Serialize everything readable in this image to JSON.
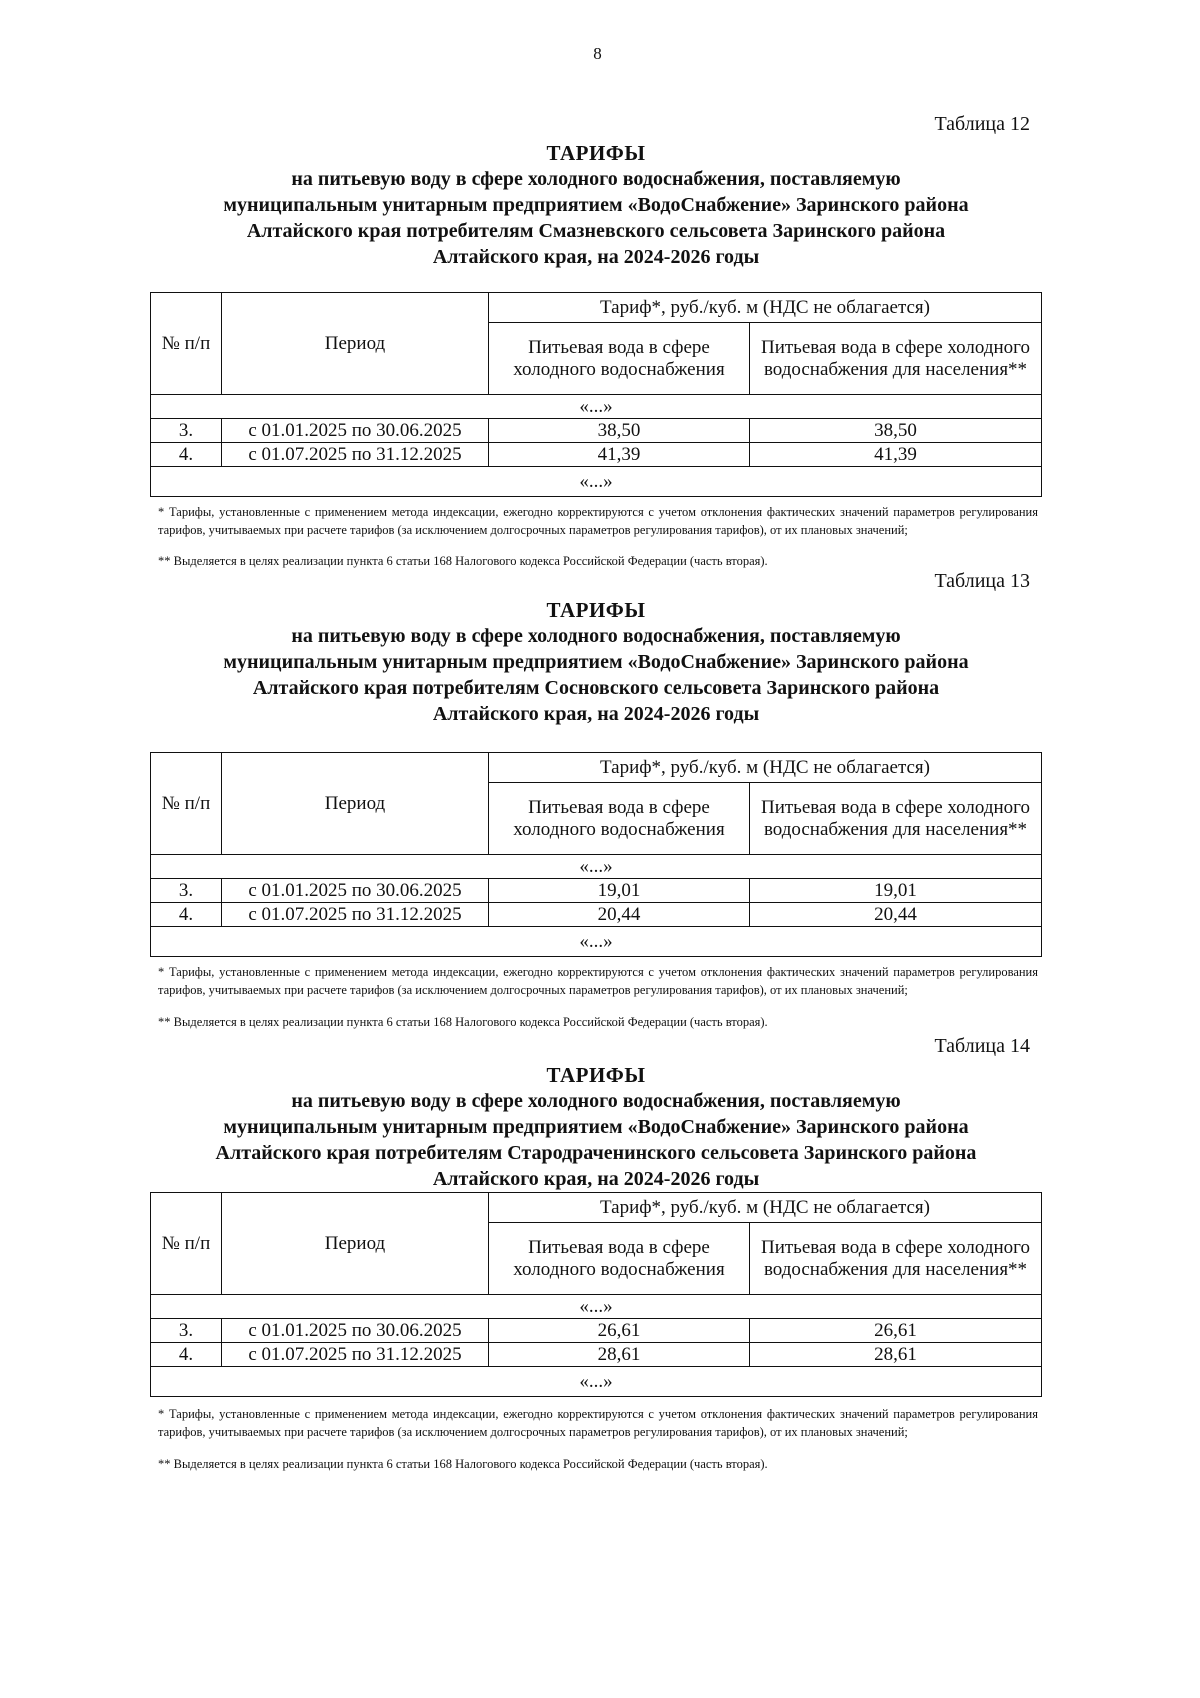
{
  "page_number": "8",
  "tables": [
    {
      "label": "Таблица 12",
      "heading": "ТАРИФЫ",
      "title_lines": [
        "на питьевую воду в сфере холодного водоснабжения, поставляемую",
        "муниципальным унитарным предприятием «ВодоСнабжение» Заринского района",
        "Алтайского края потребителям Смазневского сельсовета Заринского района",
        "Алтайского края, на 2024-2026 годы"
      ],
      "header": {
        "num": "№ п/п",
        "period": "Период",
        "tariff": "Тариф*, руб./куб. м (НДС не облагается)",
        "col1": "Питьевая вода в сфере холодного водоснабжения",
        "col2": "Питьевая вода в сфере холодного водоснабжения для населения**"
      },
      "ellipsis": "«...»",
      "rows": [
        {
          "num": "3.",
          "period": "с 01.01.2025 по 30.06.2025",
          "v1": "38,50",
          "v2": "38,50"
        },
        {
          "num": "4.",
          "period": "с 01.07.2025 по 31.12.2025",
          "v1": "41,39",
          "v2": "41,39"
        }
      ],
      "note1": "* Тарифы, установленные с применением метода индексации, ежегодно корректируются с учетом отклонения фактических значений параметров регулирования тарифов, учитываемых при расчете тарифов (за исключением долгосрочных параметров регулирования тарифов), от их плановых значений;",
      "note2": "** Выделяется в целях реализации пункта 6 статьи 168 Налогового кодекса Российской Федерации (часть вторая)."
    },
    {
      "label": "Таблица 13",
      "heading": "ТАРИФЫ",
      "title_lines": [
        "на питьевую воду в сфере холодного водоснабжения, поставляемую",
        "муниципальным унитарным предприятием «ВодоСнабжение» Заринского района",
        "Алтайского края потребителям Сосновского сельсовета Заринского района",
        "Алтайского края, на 2024-2026 годы"
      ],
      "header": {
        "num": "№ п/п",
        "period": "Период",
        "tariff": "Тариф*, руб./куб. м (НДС не облагается)",
        "col1": "Питьевая вода в сфере холодного водоснабжения",
        "col2": "Питьевая вода в сфере холодного водоснабжения для населения**"
      },
      "ellipsis": "«...»",
      "rows": [
        {
          "num": "3.",
          "period": "с 01.01.2025 по 30.06.2025",
          "v1": "19,01",
          "v2": "19,01"
        },
        {
          "num": "4.",
          "period": "с 01.07.2025 по 31.12.2025",
          "v1": "20,44",
          "v2": "20,44"
        }
      ],
      "note1": "* Тарифы, установленные с применением метода индексации, ежегодно корректируются с учетом отклонения фактических значений параметров регулирования тарифов, учитываемых при расчете тарифов (за исключением долгосрочных параметров регулирования тарифов), от их плановых значений;",
      "note2": "** Выделяется в целях реализации пункта 6 статьи 168 Налогового кодекса Российской Федерации (часть вторая)."
    },
    {
      "label": "Таблица 14",
      "heading": "ТАРИФЫ",
      "title_lines": [
        "на питьевую воду в сфере холодного водоснабжения, поставляемую",
        "муниципальным унитарным предприятием «ВодоСнабжение» Заринского района",
        "Алтайского края потребителям Стародраченинского сельсовета Заринского района",
        "Алтайского края, на 2024-2026 годы"
      ],
      "header": {
        "num": "№ п/п",
        "period": "Период",
        "tariff": "Тариф*, руб./куб. м (НДС не облагается)",
        "col1": "Питьевая вода в сфере холодного водоснабжения",
        "col2": "Питьевая вода в сфере холодного водоснабжения для населения**"
      },
      "ellipsis": "«...»",
      "rows": [
        {
          "num": "3.",
          "period": "с 01.01.2025 по 30.06.2025",
          "v1": "26,61",
          "v2": "26,61"
        },
        {
          "num": "4.",
          "period": "с 01.07.2025 по 31.12.2025",
          "v1": "28,61",
          "v2": "28,61"
        }
      ],
      "note1": "* Тарифы, установленные с применением метода индексации, ежегодно корректируются с учетом отклонения фактических значений параметров регулирования тарифов, учитываемых при расчете тарифов (за исключением долгосрочных параметров регулирования тарифов), от их плановых значений;",
      "note2": "** Выделяется в целях реализации пункта 6 статьи 168 Налогового кодекса Российской Федерации (часть вторая)."
    }
  ]
}
